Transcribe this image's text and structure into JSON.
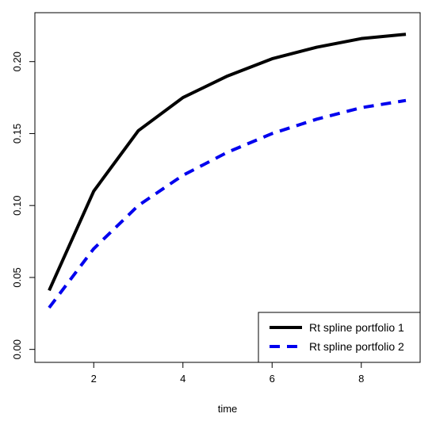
{
  "chart_data": {
    "type": "line",
    "title": "",
    "xlabel": "time",
    "ylabel": "",
    "xlim": [
      0.68,
      9.32
    ],
    "ylim": [
      -0.009,
      0.234
    ],
    "xticks": [
      2,
      4,
      6,
      8
    ],
    "yticks": [
      0.0,
      0.05,
      0.1,
      0.15,
      0.2
    ],
    "xtick_labels": [
      "2",
      "4",
      "6",
      "8"
    ],
    "ytick_labels": [
      "0.00",
      "0.05",
      "0.10",
      "0.15",
      "0.20"
    ],
    "grid": false,
    "legend_position": "bottom-right",
    "series": [
      {
        "name": "Rt spline portfolio 1",
        "color": "#000000",
        "style": "solid",
        "x": [
          1,
          2,
          3,
          4,
          5,
          6,
          7,
          8,
          9
        ],
        "y": [
          0.041,
          0.11,
          0.152,
          0.175,
          0.19,
          0.202,
          0.21,
          0.216,
          0.219
        ]
      },
      {
        "name": "Rt spline portfolio 2",
        "color": "#0000ee",
        "style": "dashed",
        "x": [
          1,
          2,
          3,
          4,
          5,
          6,
          7,
          8,
          9
        ],
        "y": [
          0.029,
          0.07,
          0.1,
          0.121,
          0.137,
          0.15,
          0.16,
          0.168,
          0.173
        ]
      }
    ]
  }
}
